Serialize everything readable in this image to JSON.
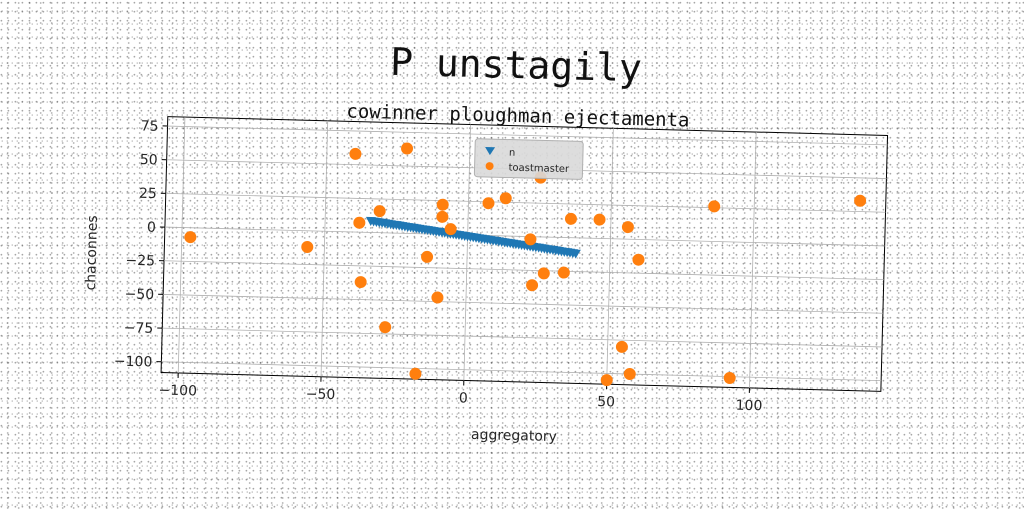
{
  "chart_data": {
    "type": "scatter",
    "title": "P unstagily",
    "subtitle": "cowinner ploughman ejectamenta",
    "xlabel": "aggregatory",
    "ylabel": "chaconnes",
    "xlim": [
      -106,
      146
    ],
    "ylim": [
      -108,
      82
    ],
    "xticks": [
      -100,
      -50,
      0,
      50,
      100
    ],
    "yticks": [
      75,
      50,
      25,
      0,
      -25,
      -50,
      -75,
      -100
    ],
    "grid": true,
    "legend_position": "upper-center",
    "series": [
      {
        "name": "n",
        "marker": "triangle-down",
        "color": "#1f77b4",
        "x": [
          -34,
          -33,
          -32,
          -31,
          -30,
          -29,
          -28,
          -27,
          -26,
          -25,
          -24,
          -23,
          -22,
          -21,
          -20,
          -19,
          -18,
          -17,
          -16,
          -15,
          -14,
          -13,
          -12,
          -11,
          -10,
          -9,
          -8,
          -7,
          -6,
          -5,
          -4,
          -3,
          -2,
          -1,
          0,
          1,
          2,
          3,
          4,
          5,
          6,
          7,
          8,
          9,
          10,
          11,
          12,
          13,
          14,
          15,
          16,
          17,
          18,
          19,
          20,
          21,
          22,
          23,
          24,
          25,
          26,
          27,
          28,
          29,
          30,
          31,
          32,
          33,
          34,
          35,
          36,
          37,
          38
        ],
        "y": [
          8.5,
          8.2,
          7.9,
          7.6,
          7.4,
          7.1,
          6.8,
          6.5,
          6.2,
          6.0,
          5.7,
          5.4,
          5.1,
          4.8,
          4.6,
          4.3,
          4.0,
          3.7,
          3.4,
          3.2,
          2.9,
          2.6,
          2.3,
          2.0,
          1.8,
          1.5,
          1.2,
          0.9,
          0.6,
          0.4,
          0.1,
          -0.2,
          -0.5,
          -0.8,
          -1.0,
          -1.3,
          -1.6,
          -1.9,
          -2.2,
          -2.4,
          -2.7,
          -3.0,
          -3.3,
          -3.6,
          -3.8,
          -4.1,
          -4.4,
          -4.7,
          -5.0,
          -5.2,
          -5.5,
          -5.8,
          -6.1,
          -6.4,
          -6.6,
          -6.9,
          -7.2,
          -7.5,
          -7.8,
          -8.0,
          -8.3,
          -8.6,
          -8.9,
          -9.2,
          -9.4,
          -9.7,
          -10.0,
          -10.3,
          -10.6,
          -10.8,
          -11.1,
          -11.4,
          -11.7
        ]
      },
      {
        "name": "toastmaster",
        "marker": "circle",
        "color": "#ff7f0e",
        "x": [
          -97,
          -56,
          -40,
          -38,
          -37,
          -31,
          -28,
          -22,
          -17,
          -14,
          -10,
          -9,
          -9,
          -6,
          7,
          13,
          22,
          23,
          25,
          27,
          34,
          36,
          46,
          50,
          55,
          56,
          58,
          60,
          86,
          93,
          137
        ],
        "y": [
          -7,
          -12,
          58,
          7,
          -37,
          16,
          -70,
          63,
          -104,
          -17,
          -47,
          22,
          13,
          4,
          24,
          28,
          -2,
          -36,
          44,
          -27,
          -26,
          14,
          14,
          -105,
          -80,
          9,
          -100,
          -15,
          26,
          -101,
          33
        ]
      }
    ]
  }
}
